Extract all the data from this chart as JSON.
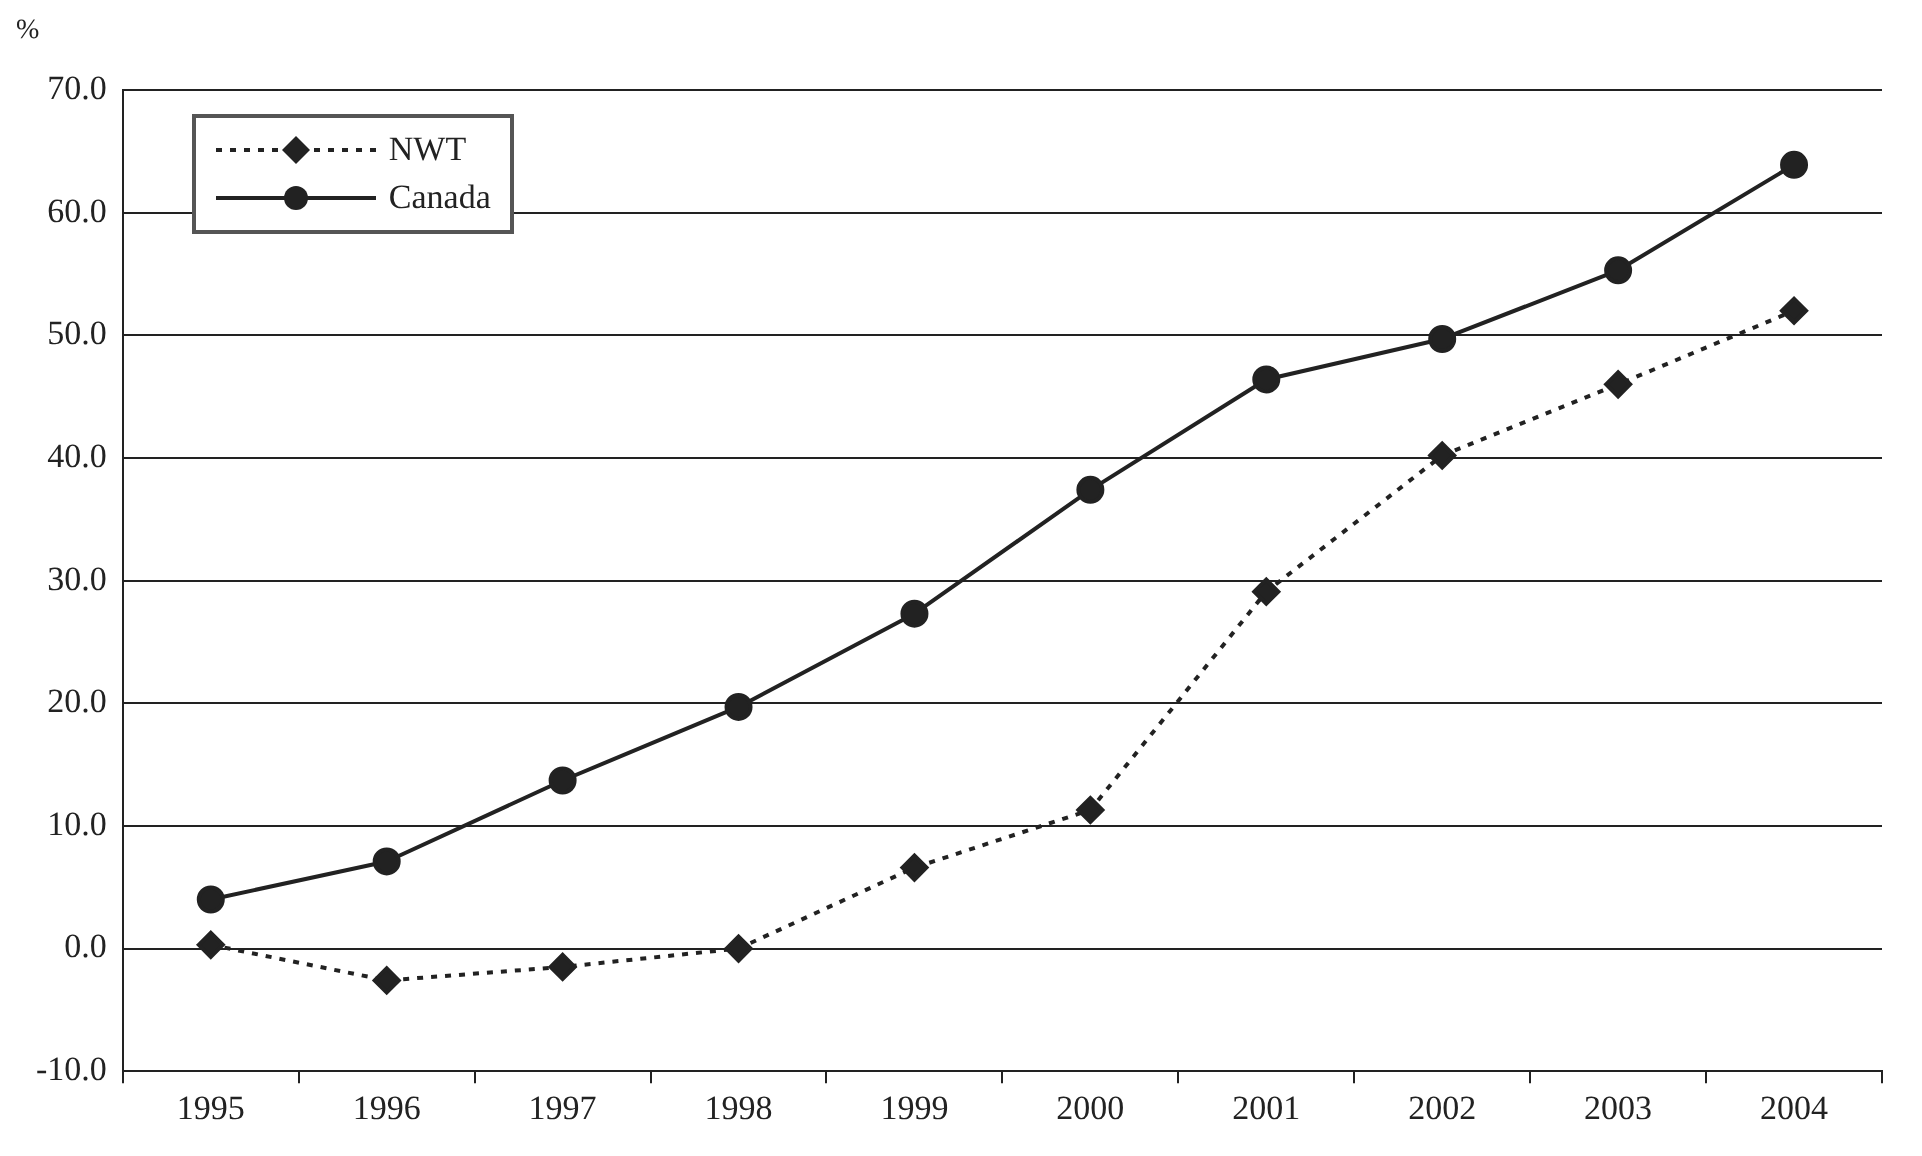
{
  "chart_data": {
    "type": "line",
    "ylabel": "%",
    "categories": [
      "1995",
      "1996",
      "1997",
      "1998",
      "1999",
      "2000",
      "2001",
      "2002",
      "2003",
      "2004"
    ],
    "series": [
      {
        "name": "NWT",
        "color": "#222222",
        "marker": "diamond",
        "line_style": "dotted",
        "values": [
          0.3,
          -2.6,
          -1.5,
          0.0,
          6.6,
          11.3,
          29.1,
          40.2,
          46.0,
          52.0
        ]
      },
      {
        "name": "Canada",
        "color": "#222222",
        "marker": "circle",
        "line_style": "solid",
        "values": [
          4.0,
          7.1,
          13.7,
          19.7,
          27.3,
          37.4,
          46.4,
          49.7,
          55.3,
          63.9
        ]
      }
    ],
    "ylim": [
      -10,
      70
    ],
    "yticks": [
      {
        "value": -10,
        "label": "-10.0"
      },
      {
        "value": 0,
        "label": "0.0"
      },
      {
        "value": 10,
        "label": "10.0"
      },
      {
        "value": 20,
        "label": "20.0"
      },
      {
        "value": 30,
        "label": "30.0"
      },
      {
        "value": 40,
        "label": "40.0"
      },
      {
        "value": 50,
        "label": "50.0"
      },
      {
        "value": 60,
        "label": "60.0"
      },
      {
        "value": 70,
        "label": "70.0"
      }
    ],
    "grid": "y",
    "legend": "top left"
  }
}
